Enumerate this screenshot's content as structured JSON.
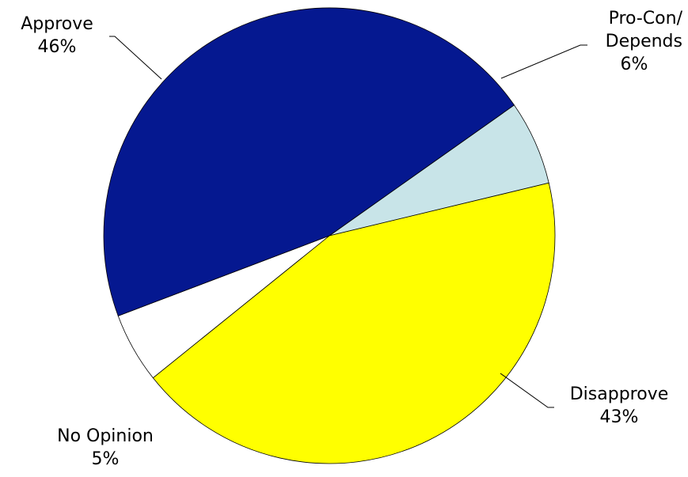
{
  "chart_data": {
    "type": "pie",
    "title": "",
    "legend": "none",
    "slices": [
      {
        "name_lines": [
          "Pro-Con/",
          "Depends"
        ],
        "value": 6,
        "label": "6%",
        "color": "#c8e4e8"
      },
      {
        "name_lines": [
          "Disapprove"
        ],
        "value": 43,
        "label": "43%",
        "color": "#ffff00"
      },
      {
        "name_lines": [
          "No Opinion"
        ],
        "value": 5,
        "label": "5%",
        "color": "#ffffff"
      },
      {
        "name_lines": [
          "Approve"
        ],
        "value": 46,
        "label": "46%",
        "color": "#051890"
      }
    ]
  }
}
